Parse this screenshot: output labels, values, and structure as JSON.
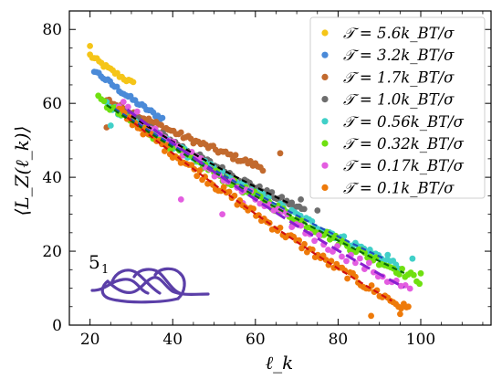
{
  "chart_data": {
    "type": "scatter",
    "xlabel": "ℓ_k",
    "ylabel": "⟨L_Z(ℓ_k)⟩",
    "xlim": [
      15,
      117
    ],
    "ylim": [
      0,
      85
    ],
    "x_ticks": [
      20,
      40,
      60,
      80,
      100
    ],
    "y_ticks": [
      0,
      20,
      40,
      60,
      80
    ],
    "grid": false,
    "legend_position": "top-right",
    "annotation": "5",
    "annotation_subscript": "1",
    "knot_color": "#5b3fa8",
    "series": [
      {
        "name": "𝒯 = 5.6k_BT/σ",
        "color": "#f5c518",
        "x_start": 20,
        "x_end": 31,
        "y_start": 73,
        "y_end": 65,
        "noise": 0.6,
        "step": 0.55,
        "fit": false,
        "outliers": [
          [
            20,
            75.5
          ]
        ]
      },
      {
        "name": "𝒯 = 3.2k_BT/σ",
        "color": "#4a8ad8",
        "x_start": 21,
        "x_end": 38,
        "y_start": 69,
        "y_end": 55.5,
        "noise": 0.6,
        "step": 0.55,
        "fit": false,
        "outliers": []
      },
      {
        "name": "𝒯 = 1.7k_BT/σ",
        "color": "#c26a2e",
        "x_start": 24,
        "x_end": 62,
        "y_start": 61,
        "y_end": 42.5,
        "noise": 0.8,
        "step": 0.6,
        "fit": false,
        "outliers": [
          [
            66,
            46.5
          ],
          [
            24,
            53.5
          ]
        ]
      },
      {
        "name": "𝒯 = 1.0k_BT/σ",
        "color": "#6d6d6d",
        "x_start": 28,
        "x_end": 72,
        "y_start": 58,
        "y_end": 31,
        "noise": 0.8,
        "step": 0.6,
        "fit": true,
        "fit_color": "#000000",
        "outliers": [
          [
            71,
            34
          ],
          [
            75,
            31
          ],
          [
            69,
            27
          ]
        ]
      },
      {
        "name": "𝒯 = 0.56k_BT/σ",
        "color": "#40d0c8",
        "x_start": 24,
        "x_end": 95,
        "y_start": 60,
        "y_end": 16,
        "noise": 1.0,
        "step": 0.7,
        "fit": true,
        "fit_color": "#1f4fbf",
        "outliers": [
          [
            25,
            54
          ],
          [
            92,
            19
          ],
          [
            98,
            18
          ]
        ]
      },
      {
        "name": "𝒯 = 0.32k_BT/σ",
        "color": "#6fe010",
        "x_start": 22,
        "x_end": 100,
        "y_start": 61,
        "y_end": 12,
        "noise": 1.1,
        "step": 0.7,
        "fit": true,
        "fit_color": "#0a6a0a",
        "outliers": [
          [
            100,
            14
          ]
        ]
      },
      {
        "name": "𝒯 = 0.17k_BT/σ",
        "color": "#e35de0",
        "x_start": 27,
        "x_end": 98,
        "y_start": 60,
        "y_end": 9,
        "noise": 1.6,
        "step": 1.1,
        "fit": true,
        "fit_color": "#8a1fd0",
        "fit_dashed": true,
        "outliers": [
          [
            52,
            30
          ],
          [
            57,
            33
          ],
          [
            42,
            34
          ]
        ]
      },
      {
        "name": "𝒯 = 0.1k_BT/σ",
        "color": "#ee7a0a",
        "x_start": 27,
        "x_end": 97,
        "y_start": 58,
        "y_end": 4,
        "noise": 1.2,
        "step": 0.65,
        "fit": true,
        "fit_color": "#d01010",
        "outliers": [
          [
            88,
            2.5
          ],
          [
            95,
            3
          ],
          [
            97,
            5
          ]
        ]
      }
    ]
  }
}
